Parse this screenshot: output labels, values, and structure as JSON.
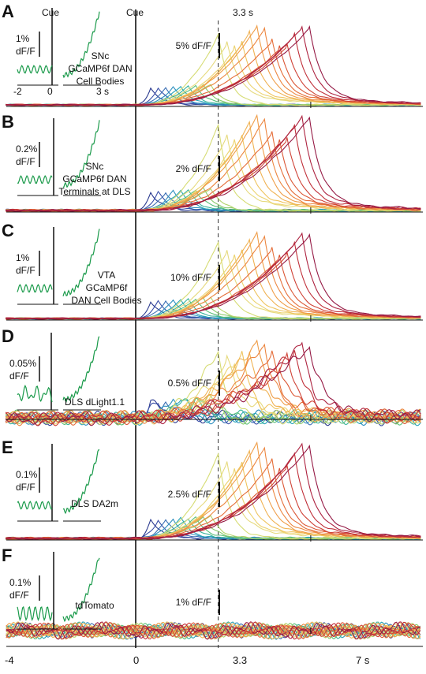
{
  "figure": {
    "cue_label": "Cue",
    "marker_label": "3.3 s",
    "x_tick_labels": [
      "-4",
      "0",
      "3.3",
      "7 s"
    ],
    "inset_ticks_a": [
      "-2",
      "0",
      "3 s"
    ]
  },
  "chart_data": {
    "type": "line",
    "description_units": "time (s) relative to cue; dF/F",
    "x_axis": {
      "ticks": [
        -4,
        0,
        3.3,
        7
      ],
      "tick_labels": [
        "-4",
        "0",
        "3.3",
        "7 s"
      ],
      "range": [
        -4,
        9
      ],
      "cue_line": 0,
      "dashed_line": 3.3
    },
    "trial_duration_bins_s": [
      0.6,
      0.9,
      1.2,
      1.5,
      1.8,
      2.1,
      2.4,
      2.7,
      3.0,
      3.3,
      3.6,
      3.9,
      4.2,
      4.5,
      4.8,
      5.1,
      5.4,
      5.7,
      6.0,
      6.3,
      6.6,
      6.9
    ],
    "panels": [
      {
        "letter": "A",
        "label_lines": [
          "SNc",
          "GCaMP6f DAN",
          "Cell Bodies"
        ],
        "scale_bar": "5% dF/F",
        "inset_scale": "1%\ndF/F",
        "inset_scale_lines": [
          "1%",
          "dF/F"
        ],
        "peak_frac": 0.85,
        "noise": 0.01
      },
      {
        "letter": "B",
        "label_lines": [
          "SNc",
          "GCaMP6f DAN",
          "Terminals at DLS"
        ],
        "scale_bar": "2% dF/F",
        "inset_scale_lines": [
          "0.2%",
          "dF/F"
        ],
        "peak_frac": 0.95,
        "noise": 0.015
      },
      {
        "letter": "C",
        "label_lines": [
          "VTA",
          "GCaMP6f",
          "DAN Cell Bodies"
        ],
        "scale_bar": "10% dF/F",
        "inset_scale_lines": [
          "1%",
          "dF/F"
        ],
        "peak_frac": 0.9,
        "noise": 0.01
      },
      {
        "letter": "D",
        "label_lines": [
          "DLS dLight1.1"
        ],
        "scale_bar": "0.5% dF/F",
        "inset_scale_lines": [
          "0.05%",
          "dF/F"
        ],
        "peak_frac": 0.85,
        "noise": 0.08
      },
      {
        "letter": "E",
        "label_lines": [
          "DLS DA2m"
        ],
        "scale_bar": "2.5% dF/F",
        "inset_scale_lines": [
          "0.1%",
          "dF/F"
        ],
        "peak_frac": 0.95,
        "noise": 0.015
      },
      {
        "letter": "F",
        "label_lines": [
          "tdTomato"
        ],
        "scale_bar": "1% dF/F",
        "inset_scale_lines": [
          "0.1%",
          "dF/F"
        ],
        "peak_frac": 0.0,
        "noise": 0.2
      }
    ],
    "series_colors": [
      "#2b3a8f",
      "#3a4fa8",
      "#3b6fb4",
      "#2e8fbf",
      "#27a3b8",
      "#38b39a",
      "#5bbf7a",
      "#86c96a",
      "#b3d36c",
      "#d6dc74",
      "#e6da7e",
      "#ecd36f",
      "#efc45f",
      "#f0b253",
      "#ef9d48",
      "#ec8640",
      "#e56e3a",
      "#db5735",
      "#cf4236",
      "#c0303a",
      "#ad2340",
      "#951a45"
    ]
  }
}
